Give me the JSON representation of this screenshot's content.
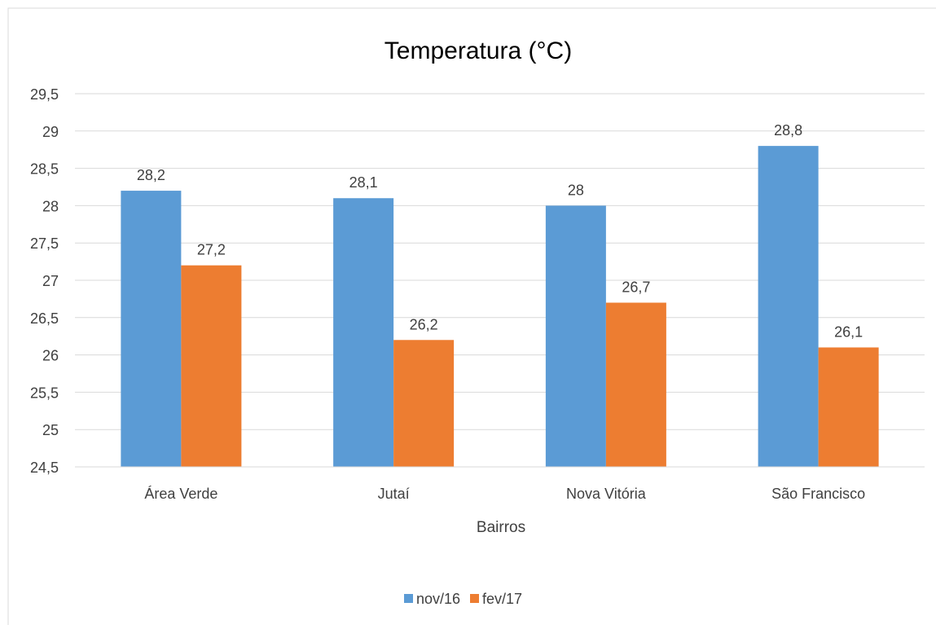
{
  "chart_data": {
    "type": "bar",
    "title": "Temperatura (°C)",
    "xlabel": "Bairros",
    "ylabel": "",
    "categories": [
      "Área Verde",
      "Jutaí",
      "Nova Vitória",
      "São Francisco"
    ],
    "series": [
      {
        "name": "nov/16",
        "values": [
          28.2,
          28.1,
          28,
          28.8
        ],
        "labels": [
          "28,2",
          "28,1",
          "28",
          "28,8"
        ],
        "color": "#5B9BD5"
      },
      {
        "name": "fev/17",
        "values": [
          27.2,
          26.2,
          26.7,
          26.1
        ],
        "labels": [
          "27,2",
          "26,2",
          "26,7",
          "26,1"
        ],
        "color": "#ED7D31"
      }
    ],
    "ylim": [
      24.5,
      29.5
    ],
    "yticks": [
      24.5,
      25,
      25.5,
      26,
      26.5,
      27,
      27.5,
      28,
      28.5,
      29,
      29.5
    ],
    "ytick_labels": [
      "24,5",
      "25",
      "25,5",
      "26",
      "26,5",
      "27",
      "27,5",
      "28",
      "28,5",
      "29",
      "29,5"
    ],
    "grid": true,
    "legend_position": "bottom"
  }
}
